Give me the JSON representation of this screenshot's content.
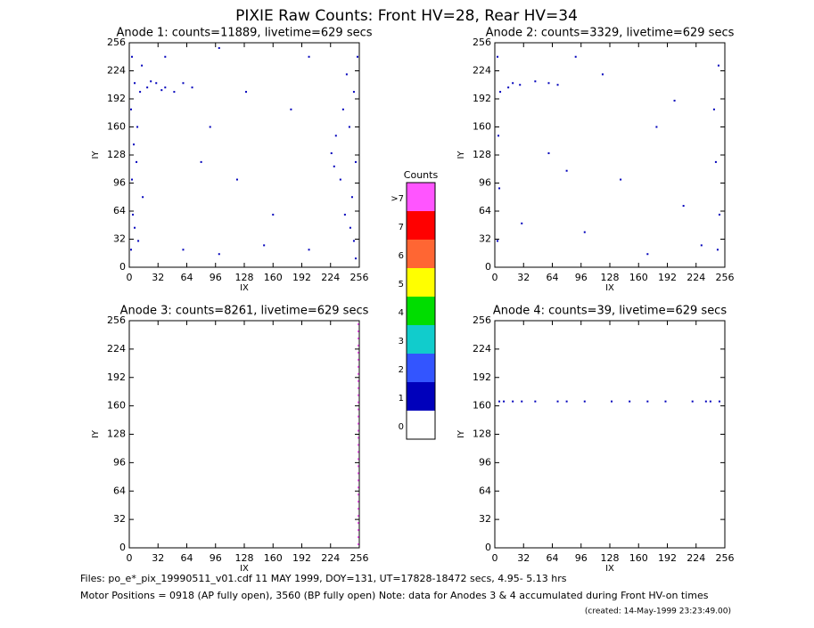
{
  "title": "PIXIE Raw Counts:  Front HV=28, Rear HV=34",
  "chart_data": [
    {
      "type": "scatter",
      "title": "Anode 1: counts=11889, livetime=629 secs",
      "xlabel": "IX",
      "ylabel": "IY",
      "xlim": [
        0,
        256
      ],
      "ylim": [
        0,
        256
      ],
      "xticks": [
        0,
        32,
        64,
        96,
        128,
        160,
        192,
        224,
        256
      ],
      "yticks": [
        0,
        32,
        64,
        96,
        128,
        160,
        192,
        224,
        256
      ],
      "color": "#0000bb",
      "x": [
        2,
        4,
        3,
        5,
        2,
        6,
        3,
        10,
        12,
        20,
        30,
        40,
        50,
        60,
        70,
        8,
        15,
        250,
        248,
        252,
        245,
        250,
        254,
        235,
        230,
        240,
        225,
        60,
        100,
        150,
        200,
        120,
        90,
        180,
        160,
        40,
        100,
        200,
        80,
        130,
        6,
        9,
        14,
        24,
        36,
        246,
        238,
        252,
        228,
        242
      ],
      "y": [
        20,
        60,
        100,
        140,
        180,
        210,
        240,
        30,
        200,
        205,
        210,
        205,
        200,
        210,
        205,
        120,
        80,
        30,
        80,
        120,
        160,
        200,
        240,
        100,
        150,
        60,
        130,
        20,
        15,
        25,
        20,
        100,
        160,
        180,
        60,
        240,
        250,
        240,
        120,
        200,
        45,
        160,
        230,
        212,
        202,
        45,
        180,
        10,
        115,
        220
      ]
    },
    {
      "type": "scatter",
      "title": "Anode 2: counts=3329, livetime=629 secs",
      "xlabel": "IX",
      "ylabel": "IY",
      "xlim": [
        0,
        256
      ],
      "ylim": [
        0,
        256
      ],
      "xticks": [
        0,
        32,
        64,
        96,
        128,
        160,
        192,
        224,
        256
      ],
      "yticks": [
        0,
        32,
        64,
        96,
        128,
        160,
        192,
        224,
        256
      ],
      "color": "#0000bb",
      "x": [
        3,
        5,
        4,
        6,
        3,
        15,
        20,
        28,
        45,
        60,
        70,
        248,
        250,
        246,
        244,
        249,
        230,
        100,
        140,
        180,
        60,
        210,
        120,
        90,
        170,
        30,
        200,
        80
      ],
      "y": [
        30,
        90,
        150,
        200,
        240,
        205,
        210,
        208,
        212,
        210,
        208,
        20,
        60,
        120,
        180,
        230,
        25,
        40,
        100,
        160,
        130,
        70,
        220,
        240,
        15,
        50,
        190,
        110
      ]
    },
    {
      "type": "scatter",
      "title": "Anode 3: counts=8261, livetime=629 secs",
      "xlabel": "IX",
      "ylabel": "IY",
      "xlim": [
        0,
        256
      ],
      "ylim": [
        0,
        256
      ],
      "xticks": [
        0,
        32,
        64,
        96,
        128,
        160,
        192,
        224,
        256
      ],
      "yticks": [
        0,
        32,
        64,
        96,
        128,
        160,
        192,
        224,
        256
      ],
      "color": "#ff55ff",
      "x": [
        255,
        255,
        255,
        255,
        255,
        255,
        255,
        255,
        255,
        255,
        255,
        255,
        255,
        255,
        255,
        255,
        255,
        255,
        255,
        255,
        255,
        255,
        255,
        255,
        255,
        255,
        255,
        255,
        255,
        255,
        255,
        255
      ],
      "y": [
        4,
        12,
        20,
        28,
        36,
        44,
        52,
        60,
        68,
        76,
        84,
        92,
        100,
        108,
        116,
        124,
        132,
        140,
        148,
        156,
        164,
        172,
        180,
        188,
        196,
        204,
        212,
        220,
        228,
        236,
        244,
        252
      ]
    },
    {
      "type": "scatter",
      "title": "Anode 4: counts=39, livetime=629 secs",
      "xlabel": "IX",
      "ylabel": "IY",
      "xlim": [
        0,
        256
      ],
      "ylim": [
        0,
        256
      ],
      "xticks": [
        0,
        32,
        64,
        96,
        128,
        160,
        192,
        224,
        256
      ],
      "yticks": [
        0,
        32,
        64,
        96,
        128,
        160,
        192,
        224,
        256
      ],
      "color": "#0000bb",
      "x": [
        5,
        10,
        20,
        30,
        45,
        70,
        80,
        100,
        130,
        150,
        170,
        190,
        220,
        235,
        240,
        250
      ],
      "y": [
        165,
        165,
        165,
        165,
        165,
        165,
        165,
        165,
        165,
        165,
        165,
        165,
        165,
        165,
        165,
        165
      ]
    },
    {
      "type": "colorbar",
      "title": "Counts",
      "categories": [
        "0",
        "1",
        "2",
        "3",
        "4",
        "5",
        "6",
        "7",
        ">7"
      ],
      "colors": [
        "#ffffff",
        "#0000bb",
        "#3355ff",
        "#11cccc",
        "#00dd00",
        "#ffff00",
        "#ff6633",
        "#ff0000",
        "#ff55ff"
      ]
    }
  ],
  "footer": [
    "Files: po_e*_pix_19990511_v01.cdf    11 MAY 1999, DOY=131, UT=17828-18472 secs,  4.95- 5.13 hrs",
    "Motor Positions = 0918 (AP fully open), 3560 (BP fully open)    Note: data for Anodes 3 & 4 accumulated during Front HV-on times",
    "(created: 14-May-1999 23:23:49.00)"
  ]
}
